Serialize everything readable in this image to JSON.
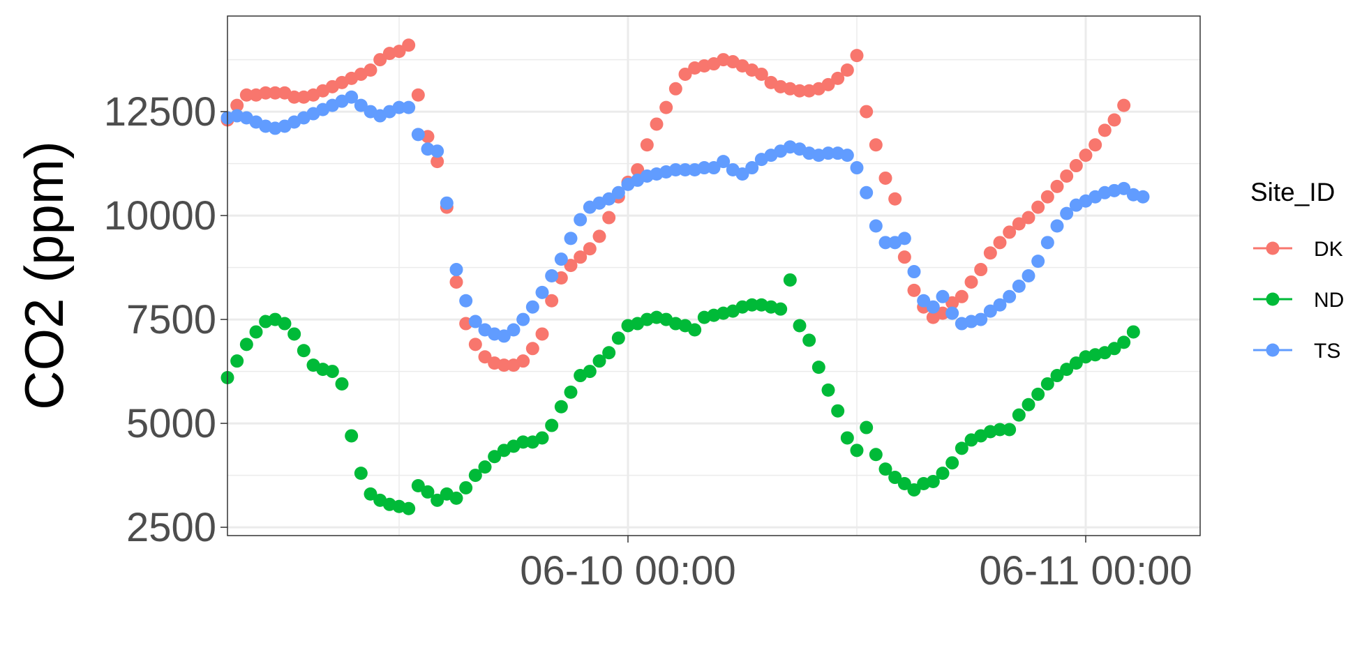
{
  "chart_data": {
    "type": "scatter",
    "title": "",
    "xlabel": "",
    "ylabel": "CO2 (ppm)",
    "x_axis": {
      "start": "06-09 03:00",
      "interval_hours": 0.5,
      "range_hours": [
        0,
        51
      ],
      "ticks": [
        {
          "hours": 21,
          "label": "06-10 00:00"
        },
        {
          "hours": 45,
          "label": "06-11 00:00"
        }
      ],
      "minor_gridlines_hours": [
        9,
        33
      ]
    },
    "y_axis": {
      "ylim": [
        2300,
        14800
      ],
      "ticks": [
        2500,
        5000,
        7500,
        10000,
        12500
      ],
      "minor_gridlines": [
        3750,
        6250,
        8750,
        11250,
        13750
      ]
    },
    "grid": true,
    "legend": {
      "title": "Site_ID",
      "placement": "right"
    },
    "series": [
      {
        "name": "DK",
        "color": "#F8766D",
        "values": [
          12300,
          12650,
          12900,
          12900,
          12950,
          12950,
          12950,
          12850,
          12850,
          12900,
          13000,
          13100,
          13200,
          13300,
          13400,
          13500,
          13750,
          13900,
          13950,
          14100,
          12900,
          11900,
          11300,
          10200,
          8400,
          7400,
          6900,
          6600,
          6450,
          6400,
          6400,
          6500,
          6800,
          7150,
          7950,
          8500,
          8800,
          9000,
          9200,
          9500,
          9950,
          10450,
          10800,
          11100,
          11700,
          12200,
          12600,
          13050,
          13400,
          13550,
          13600,
          13650,
          13750,
          13700,
          13600,
          13500,
          13400,
          13200,
          13100,
          13050,
          13000,
          13000,
          13050,
          13150,
          13300,
          13500,
          13850,
          12500,
          11700,
          10900,
          10400,
          9000,
          8200,
          7800,
          7550,
          7650,
          7900,
          8050,
          8400,
          8700,
          9100,
          9350,
          9600,
          9800,
          9950,
          10200,
          10450,
          10700,
          10950,
          11200,
          11450,
          11700,
          12050,
          12300,
          12650
        ]
      },
      {
        "name": "ND",
        "color": "#00BA38",
        "values": [
          6100,
          6500,
          6900,
          7200,
          7450,
          7500,
          7400,
          7150,
          6750,
          6400,
          6300,
          6250,
          5950,
          4700,
          3800,
          3300,
          3150,
          3050,
          3000,
          2950,
          3500,
          3350,
          3150,
          3300,
          3200,
          3450,
          3750,
          3950,
          4200,
          4350,
          4450,
          4550,
          4550,
          4650,
          4950,
          5400,
          5750,
          6150,
          6250,
          6500,
          6700,
          7050,
          7350,
          7400,
          7500,
          7550,
          7500,
          7400,
          7350,
          7250,
          7550,
          7600,
          7650,
          7700,
          7800,
          7850,
          7850,
          7800,
          7750,
          8450,
          7350,
          7000,
          6350,
          5800,
          5300,
          4650,
          4350,
          4900,
          4250,
          3900,
          3700,
          3550,
          3400,
          3550,
          3600,
          3800,
          4050,
          4400,
          4600,
          4700,
          4800,
          4850,
          4850,
          5200,
          5450,
          5700,
          5950,
          6150,
          6300,
          6450,
          6600,
          6650,
          6700,
          6800,
          6950,
          7200
        ]
      },
      {
        "name": "TS",
        "color": "#619CFF",
        "values": [
          12350,
          12400,
          12350,
          12250,
          12150,
          12100,
          12150,
          12250,
          12350,
          12450,
          12550,
          12650,
          12750,
          12850,
          12650,
          12500,
          12400,
          12500,
          12600,
          12600,
          11950,
          11600,
          11550,
          10300,
          8700,
          7950,
          7450,
          7250,
          7150,
          7100,
          7250,
          7500,
          7800,
          8150,
          8550,
          8950,
          9450,
          9900,
          10200,
          10300,
          10400,
          10550,
          10750,
          10850,
          10950,
          11000,
          11050,
          11100,
          11100,
          11100,
          11150,
          11150,
          11300,
          11100,
          11000,
          11150,
          11350,
          11450,
          11550,
          11650,
          11600,
          11500,
          11450,
          11500,
          11500,
          11450,
          11150,
          10550,
          9750,
          9350,
          9350,
          9450,
          8650,
          7950,
          7800,
          8050,
          7650,
          7400,
          7450,
          7500,
          7700,
          7850,
          8050,
          8300,
          8550,
          8900,
          9350,
          9750,
          10050,
          10250,
          10350,
          10450,
          10550,
          10600,
          10650,
          10500,
          10450
        ]
      }
    ]
  }
}
